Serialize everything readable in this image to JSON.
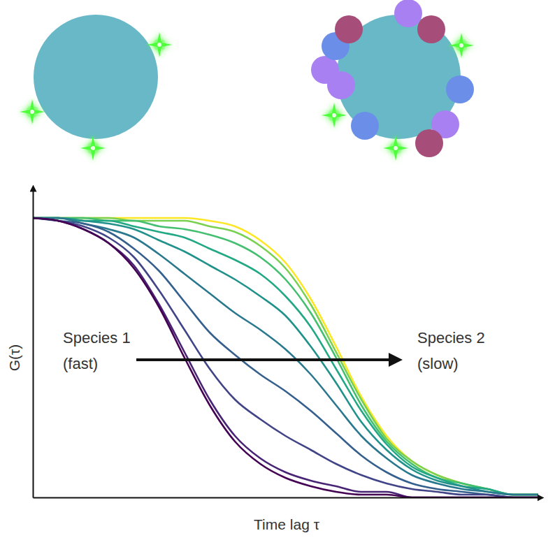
{
  "chart_data": {
    "type": "line",
    "x_label": "Time lag τ",
    "y_label": "G(τ)",
    "annotations": [
      {
        "lines": [
          "Species 1",
          "(fast)"
        ]
      },
      {
        "lines": [
          "Species 2",
          "(slow)"
        ]
      }
    ],
    "x": [
      0,
      5,
      10,
      15,
      20,
      25,
      30,
      35,
      40,
      45,
      50,
      55,
      60,
      65,
      70,
      75,
      80,
      85,
      90,
      95,
      100
    ],
    "xlim": [
      0,
      100
    ],
    "ylim": [
      0,
      1.1
    ],
    "tick_labels": false,
    "grid": false,
    "series": [
      {
        "color": "#440154",
        "values": [
          1.0,
          0.99,
          0.96,
          0.91,
          0.82,
          0.68,
          0.5,
          0.33,
          0.2,
          0.12,
          0.07,
          0.04,
          0.02,
          0.01,
          0.01,
          0.0,
          0.0,
          0.0,
          0.0,
          0.0,
          0.0
        ]
      },
      {
        "color": "#482475",
        "values": [
          1.0,
          0.99,
          0.96,
          0.91,
          0.83,
          0.69,
          0.52,
          0.35,
          0.22,
          0.14,
          0.09,
          0.06,
          0.04,
          0.02,
          0.02,
          0.0,
          0.0,
          0.0,
          0.0,
          0.0,
          0.0
        ]
      },
      {
        "color": "#414487",
        "values": [
          1.0,
          0.99,
          0.97,
          0.93,
          0.86,
          0.74,
          0.6,
          0.46,
          0.35,
          0.28,
          0.22,
          0.17,
          0.12,
          0.08,
          0.05,
          0.03,
          0.02,
          0.01,
          0.01,
          0.0,
          0.0
        ]
      },
      {
        "color": "#355f8d",
        "values": [
          1.0,
          0.99,
          0.98,
          0.95,
          0.89,
          0.81,
          0.7,
          0.59,
          0.51,
          0.44,
          0.38,
          0.31,
          0.23,
          0.15,
          0.09,
          0.05,
          0.03,
          0.02,
          0.01,
          0.0,
          0.0
        ]
      },
      {
        "color": "#2a788e",
        "values": [
          1.0,
          1.0,
          0.98,
          0.96,
          0.93,
          0.87,
          0.8,
          0.73,
          0.66,
          0.6,
          0.53,
          0.44,
          0.33,
          0.22,
          0.14,
          0.08,
          0.05,
          0.03,
          0.02,
          0.01,
          0.01
        ]
      },
      {
        "color": "#21918c",
        "values": [
          1.0,
          1.0,
          0.99,
          0.98,
          0.96,
          0.92,
          0.88,
          0.83,
          0.78,
          0.72,
          0.65,
          0.54,
          0.41,
          0.27,
          0.17,
          0.1,
          0.06,
          0.04,
          0.02,
          0.01,
          0.01
        ]
      },
      {
        "color": "#22a884",
        "values": [
          1.0,
          1.0,
          0.99,
          0.99,
          0.97,
          0.95,
          0.93,
          0.89,
          0.85,
          0.8,
          0.72,
          0.61,
          0.46,
          0.31,
          0.19,
          0.11,
          0.07,
          0.04,
          0.03,
          0.01,
          0.01
        ]
      },
      {
        "color": "#44bf70",
        "values": [
          1.0,
          1.0,
          1.0,
          0.99,
          0.99,
          0.97,
          0.96,
          0.94,
          0.91,
          0.86,
          0.78,
          0.66,
          0.5,
          0.33,
          0.2,
          0.12,
          0.07,
          0.05,
          0.03,
          0.01,
          0.01
        ]
      },
      {
        "color": "#7ad151",
        "values": [
          1.0,
          1.0,
          1.0,
          1.0,
          0.99,
          0.99,
          0.99,
          0.97,
          0.95,
          0.9,
          0.82,
          0.69,
          0.52,
          0.35,
          0.21,
          0.13,
          0.08,
          0.05,
          0.03,
          0.01,
          0.01
        ]
      },
      {
        "color": "#fde725",
        "values": [
          1.0,
          1.0,
          1.0,
          1.0,
          1.0,
          1.0,
          1.0,
          0.99,
          0.97,
          0.92,
          0.84,
          0.71,
          0.54,
          0.36,
          0.22,
          0.13,
          0.08,
          0.05,
          0.03,
          0.01,
          0.01
        ]
      }
    ]
  }
}
